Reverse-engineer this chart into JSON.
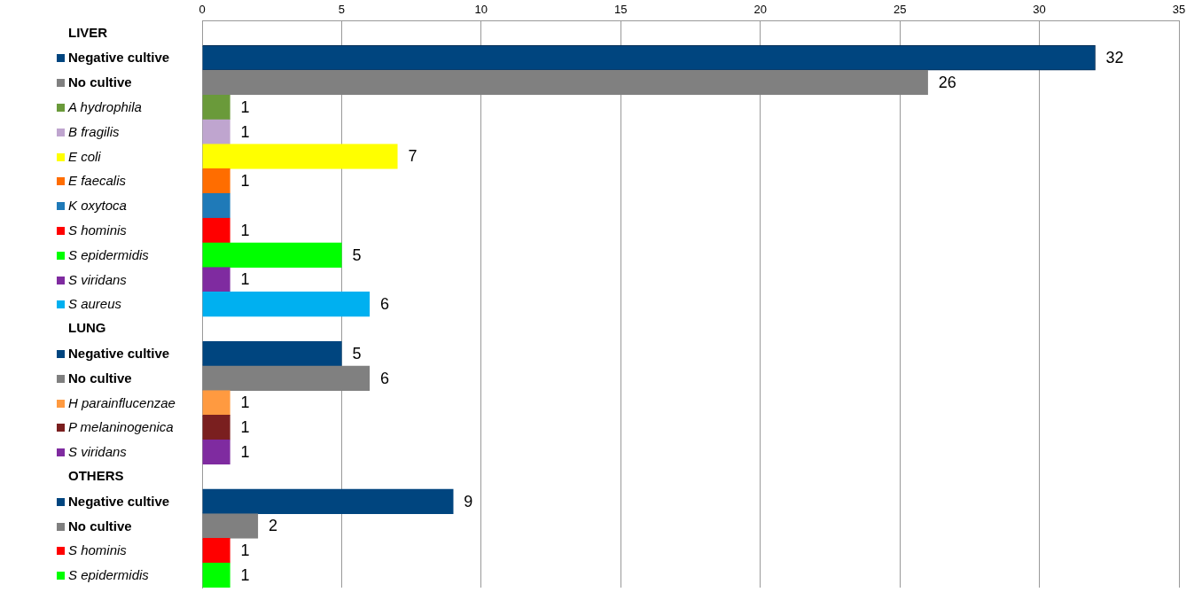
{
  "chart_data": {
    "type": "bar",
    "orientation": "horizontal",
    "categories": [
      "LIVER",
      "Negative cultive",
      "No cultive",
      "A hydrophila",
      "B fragilis",
      "E coli",
      "E faecalis",
      "K oxytoca",
      "S hominis",
      "S epidermidis",
      "S viridans",
      "S aureus",
      "LUNG",
      "Negative cultive",
      "No cultive",
      "H parainflucenzae",
      "P melaninogenica",
      "S viridans",
      "OTHERS",
      "Negative cultive",
      "No cultive",
      "S hominis",
      "S epidermidis"
    ],
    "values": [
      null,
      32,
      26,
      1,
      1,
      7,
      1,
      1,
      1,
      5,
      1,
      6,
      null,
      5,
      6,
      1,
      1,
      1,
      null,
      9,
      2,
      1,
      1
    ],
    "colors": [
      null,
      "#00457f",
      "#808080",
      "#6a9a3a",
      "#bfa5cf",
      "#ffff00",
      "#ff6d00",
      "#1f7ab8",
      "#ff0000",
      "#00ff00",
      "#7f2ba0",
      "#00b0f0",
      null,
      "#00457f",
      "#808080",
      "#ff9a40",
      "#7a1f1f",
      "#7f2ba0",
      null,
      "#00457f",
      "#808080",
      "#ff0000",
      "#00ff00"
    ],
    "value_labels": [
      null,
      "32",
      "26",
      "1",
      "1",
      "7",
      "1",
      null,
      "1",
      "5",
      "1",
      "6",
      null,
      "5",
      "6",
      "1",
      "1",
      "1",
      null,
      "9",
      "2",
      "1",
      "1"
    ],
    "xlim": [
      0,
      35
    ],
    "xticks": [
      0,
      5,
      10,
      15,
      20,
      25,
      30,
      35
    ],
    "grid": "x",
    "legend": false
  }
}
